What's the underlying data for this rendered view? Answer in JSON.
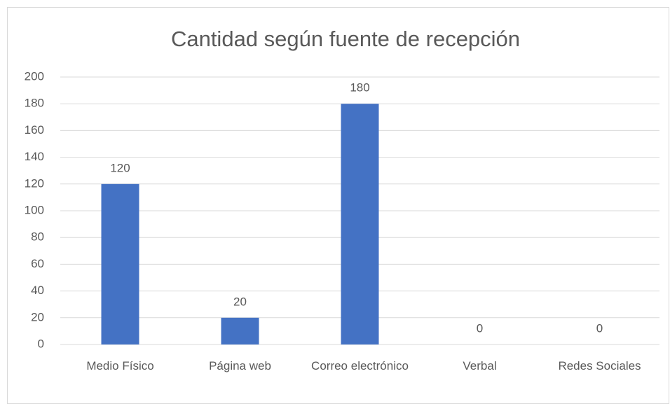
{
  "chart_data": {
    "type": "bar",
    "title": "Cantidad según fuente de recepción",
    "categories": [
      "Medio Físico",
      "Página web",
      "Correo electrónico",
      "Verbal",
      "Redes Sociales"
    ],
    "values": [
      120,
      20,
      180,
      0,
      0
    ],
    "color": "#4472c4",
    "ylim": [
      0,
      200
    ],
    "yticks": [
      0,
      20,
      40,
      60,
      80,
      100,
      120,
      140,
      160,
      180,
      200
    ],
    "grid": true,
    "data_labels": true
  }
}
